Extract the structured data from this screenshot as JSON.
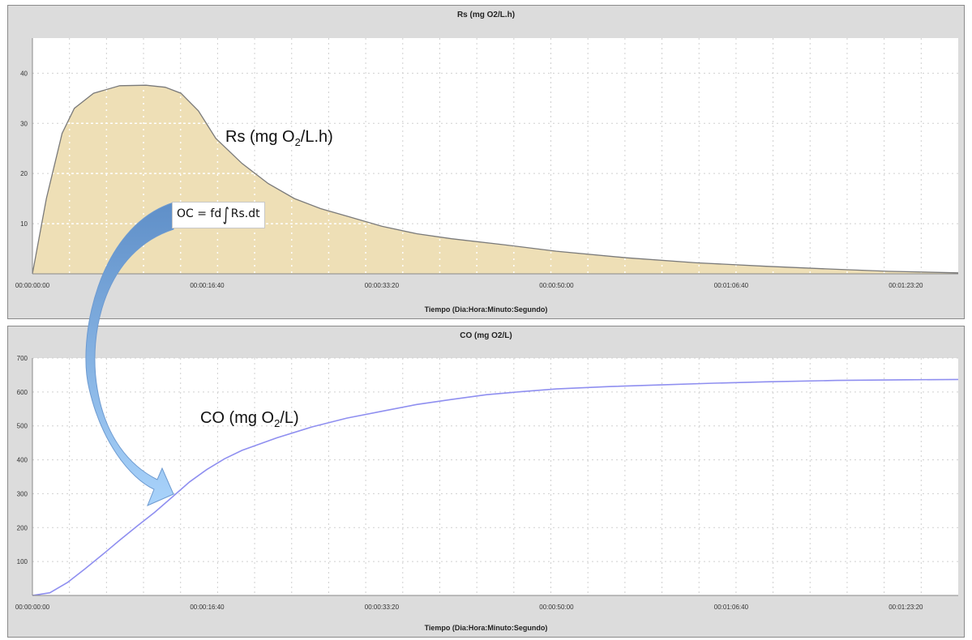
{
  "chart_data": [
    {
      "type": "area",
      "title": "Rs (mg O2/L.h)",
      "xlabel": "Tiempo (Dia:Hora:Minuto:Segundo)",
      "ylabel": "",
      "x_ticks": [
        "00:00:00:00",
        "00:00:16:40",
        "00:00:33:20",
        "00:00:50:00",
        "00:01:06:40",
        "00:01:23:20"
      ],
      "y_ticks": [
        "10",
        "20",
        "30",
        "40"
      ],
      "xlim_seconds": [
        0,
        5300
      ],
      "ylim": [
        0,
        47
      ],
      "grid": true,
      "fill_color": "#eedfb6",
      "line_color": "#7a7a7a",
      "series": [
        {
          "x": [
            0,
            80,
            170,
            240,
            350,
            500,
            650,
            760,
            850,
            950,
            1050,
            1200,
            1350,
            1500,
            1650,
            1800,
            2000,
            2200,
            2400,
            2700,
            3000,
            3400,
            3800,
            4200,
            4600,
            4900,
            5300
          ],
          "y": [
            0,
            15,
            28,
            33,
            36,
            37.5,
            37.6,
            37.2,
            36,
            32.5,
            27,
            22,
            18,
            15,
            13,
            11.5,
            9.5,
            8,
            7,
            5.8,
            4.5,
            3.2,
            2.2,
            1.5,
            0.9,
            0.5,
            0.2
          ]
        }
      ],
      "annotation": {
        "prefix": "Rs (mg O",
        "sub": "2",
        "suffix": "/L.h)"
      }
    },
    {
      "type": "line",
      "title": "CO (mg O2/L)",
      "xlabel": "Tiempo (Dia:Hora:Minuto:Segundo)",
      "ylabel": "",
      "x_ticks": [
        "00:00:00:00",
        "00:00:16:40",
        "00:00:33:20",
        "00:00:50:00",
        "00:01:06:40",
        "00:01:23:20"
      ],
      "y_ticks": [
        "100",
        "200",
        "300",
        "400",
        "500",
        "600",
        "700"
      ],
      "xlim_seconds": [
        0,
        5300
      ],
      "ylim": [
        0,
        700
      ],
      "grid": true,
      "line_color": "#8f8ff0",
      "series": [
        {
          "x": [
            0,
            100,
            200,
            300,
            400,
            500,
            600,
            700,
            800,
            900,
            1000,
            1100,
            1200,
            1400,
            1600,
            1800,
            2000,
            2200,
            2400,
            2600,
            2800,
            3000,
            3300,
            3600,
            3900,
            4200,
            4600,
            5000,
            5300
          ],
          "y": [
            0,
            8,
            38,
            78,
            120,
            163,
            205,
            245,
            290,
            335,
            372,
            403,
            428,
            465,
            497,
            523,
            543,
            563,
            578,
            592,
            601,
            609,
            616,
            621,
            626,
            630,
            634,
            636,
            637
          ]
        }
      ],
      "annotation": {
        "prefix": "CO (mg O",
        "sub": "2",
        "suffix": "/L)"
      }
    }
  ],
  "formula": {
    "lhs": "OC = fd",
    "integral": "∫",
    "rhs": "Rs.dt"
  },
  "arrow_color": "#8cbdf0",
  "arrow_icon": "curved-arrow-icon"
}
